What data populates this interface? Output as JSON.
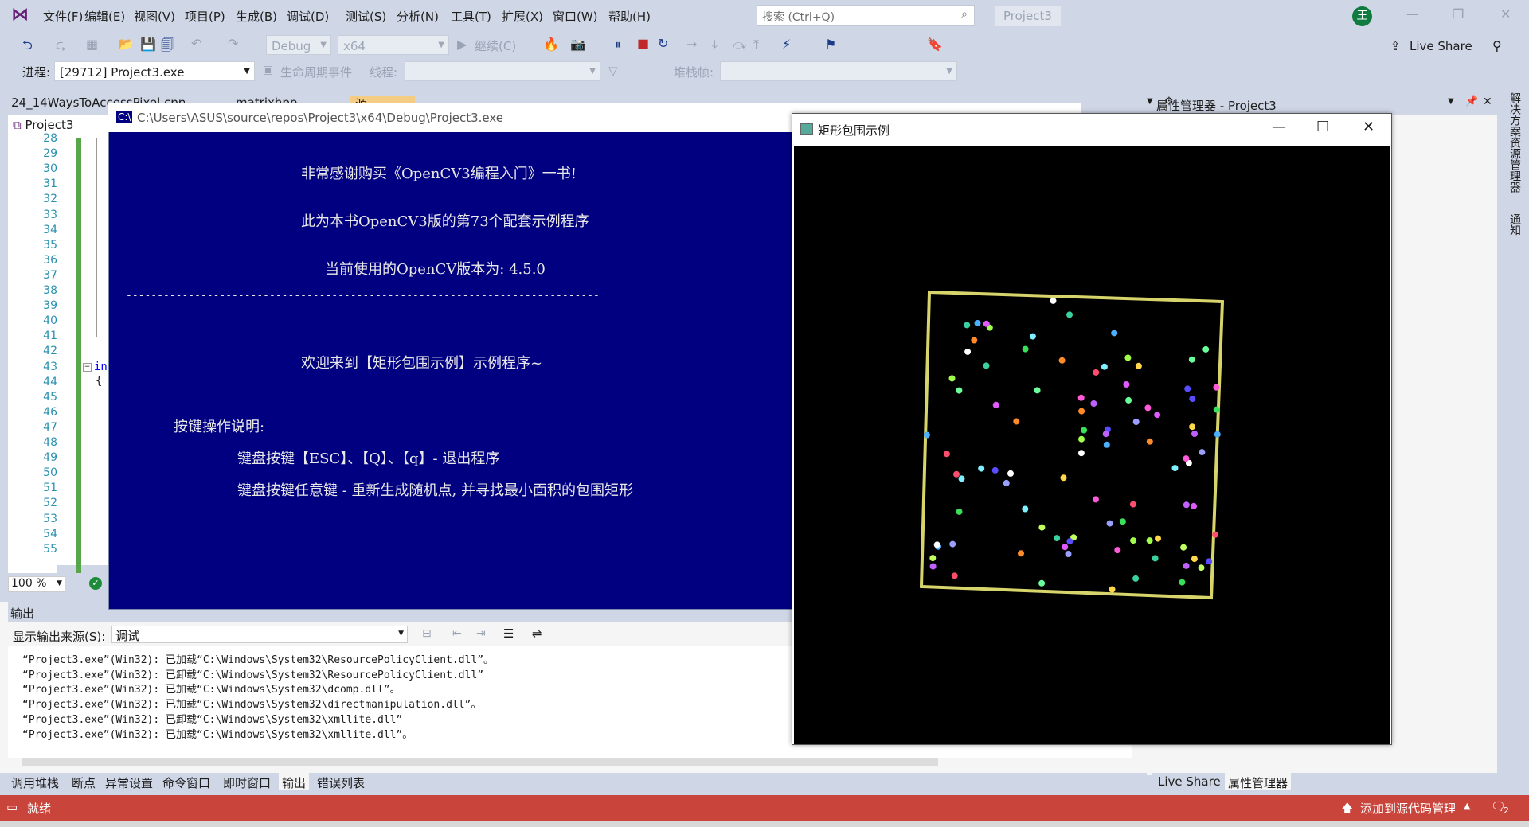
{
  "app": {
    "menu": [
      "文件(F)",
      "编辑(E)",
      "视图(V)",
      "项目(P)",
      "生成(B)",
      "调试(D)",
      "测试(S)",
      "分析(N)",
      "工具(T)",
      "扩展(X)",
      "窗口(W)",
      "帮助(H)"
    ],
    "search_placeholder": "搜索 (Ctrl+Q)",
    "project_badge": "Project3",
    "avatar_initial": "王",
    "live_share": "Live Share"
  },
  "toolbar": {
    "config": "Debug",
    "platform": "x64",
    "continue_label": "继续(C)",
    "process_label": "进程:",
    "process_value": "[29712] Project3.exe",
    "lifecycle_label": "生命周期事件",
    "thread_label": "线程:",
    "stackframe_label": "堆栈帧:"
  },
  "editor": {
    "tab1": "24_14WaysToAccessPixel.cpp",
    "tab2": "matrixhpp",
    "tab3": "源",
    "project_dropdown": "Project3",
    "line_numbers": [
      "28",
      "29",
      "30",
      "31",
      "32",
      "33",
      "34",
      "35",
      "36",
      "37",
      "38",
      "39",
      "40",
      "41",
      "42",
      "43",
      "44",
      "45",
      "46",
      "47",
      "48",
      "49",
      "50",
      "51",
      "52",
      "53",
      "54",
      "55"
    ],
    "code_fragment": "in",
    "zoom": "100 %"
  },
  "console": {
    "title": "C:\\Users\\ASUS\\source\\repos\\Project3\\x64\\Debug\\Project3.exe",
    "lines": [
      "非常感谢购买《OpenCV3编程入门》一书!",
      "此为本书OpenCV3版的第73个配套示例程序",
      "当前使用的OpenCV版本为: 4.5.0",
      "----------------------------------------------------------------------------",
      "欢迎来到【矩形包围示例】示例程序~",
      "按键操作说明:",
      "键盘按键【ESC】、【Q】、【q】- 退出程序",
      "键盘按键任意键 - 重新生成随机点, 并寻找最小面积的包围矩形"
    ]
  },
  "image_window": {
    "title": "矩形包围示例",
    "rect_color": "#d6d46a"
  },
  "right_panel": {
    "title": "属性管理器 - Project3",
    "vertical_tab1": "解决方案资源管理器",
    "vertical_tab2": "通知",
    "bottom_tab1": "Live Share",
    "bottom_tab2": "属性管理器"
  },
  "output": {
    "header": "输出",
    "source_label": "显示输出来源(S):",
    "source_value": "调试",
    "lines": [
      "“Project3.exe”(Win32): 已加载“C:\\Windows\\System32\\ResourcePolicyClient.dll”。",
      "“Project3.exe”(Win32): 已卸载“C:\\Windows\\System32\\ResourcePolicyClient.dll”",
      "“Project3.exe”(Win32): 已加载“C:\\Windows\\System32\\dcomp.dll”。",
      "“Project3.exe”(Win32): 已加载“C:\\Windows\\System32\\directmanipulation.dll”。",
      "“Project3.exe”(Win32): 已卸载“C:\\Windows\\System32\\xmllite.dll”",
      "“Project3.exe”(Win32): 已加载“C:\\Windows\\System32\\xmllite.dll”。"
    ]
  },
  "bottom_tabs": [
    "调用堆栈",
    "断点",
    "异常设置",
    "命令窗口",
    "即时窗口",
    "输出",
    "错误列表"
  ],
  "status": {
    "ready": "就绪",
    "source_control": "添加到源代码管理",
    "notifications": "2"
  }
}
